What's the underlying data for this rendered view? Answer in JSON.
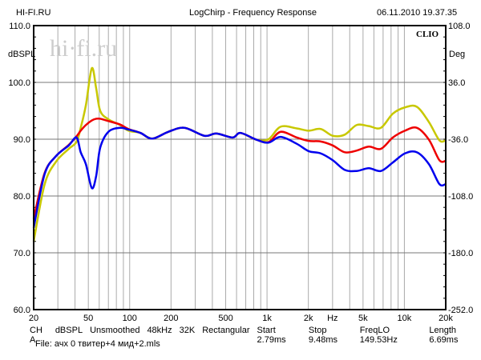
{
  "header": {
    "left": "HI-FI.RU",
    "title": "LogChirp - Frequency Response",
    "datetime": "06.11.2010 19.37.35"
  },
  "brand": "CLIO",
  "watermark": "hi·fi.ru",
  "footer": {
    "params": [
      "CH A",
      "dBSPL",
      "Unsmoothed",
      "48kHz",
      "32K",
      "Rectangular",
      "Start 2.79ms",
      "Stop 9.48ms",
      "FreqLO 149.53Hz",
      "Length 6.69ms"
    ],
    "file": "File: ачх 0 твитер+4 мид+2.mls"
  },
  "chart_data": {
    "type": "line",
    "title": "LogChirp - Frequency Response",
    "xlabel": "Hz",
    "ylabel": "dBSPL",
    "y2label": "Deg",
    "xscale": "log",
    "xlim": [
      20,
      20000
    ],
    "ylim": [
      60,
      110
    ],
    "y2lim": [
      -252,
      108
    ],
    "xticks": [
      {
        "v": 20,
        "l": "20"
      },
      {
        "v": 50,
        "l": "50"
      },
      {
        "v": 100,
        "l": "100"
      },
      {
        "v": 200,
        "l": "200"
      },
      {
        "v": 500,
        "l": "500"
      },
      {
        "v": 1000,
        "l": "1k"
      },
      {
        "v": 2000,
        "l": "2k"
      },
      {
        "v": 5000,
        "l": "5k"
      },
      {
        "v": 10000,
        "l": "10k"
      },
      {
        "v": 20000,
        "l": "20k"
      }
    ],
    "xunit_label_at": 3000,
    "yticks": [
      "110.0",
      "100.0",
      "90.0",
      "80.0",
      "70.0",
      "60.0"
    ],
    "y2ticks": [
      "108.0",
      "36.0",
      "-36.0",
      "-108.0",
      "-180.0",
      "-252.0"
    ],
    "grid": true,
    "x": [
      20,
      24,
      29,
      36,
      41,
      44,
      48,
      53,
      57,
      61,
      70,
      85,
      98,
      120,
      146,
      191,
      250,
      350,
      428,
      561,
      641,
      840,
      1026,
      1256,
      1644,
      2010,
      2460,
      3008,
      3680,
      4500,
      5510,
      6740,
      8240,
      10090,
      12340,
      15100,
      17980,
      20000
    ],
    "series": [
      {
        "name": "yellow",
        "color": "#c8c800",
        "values": [
          72,
          82,
          86,
          88.3,
          89.5,
          92,
          96,
          102.5,
          99,
          95,
          93.5,
          92.5,
          91.5,
          91.1,
          90.1,
          91.3,
          92.0,
          90.6,
          91.0,
          90.3,
          91.1,
          89.9,
          90.0,
          92.2,
          91.9,
          91.5,
          91.8,
          90.6,
          90.8,
          92.5,
          92.3,
          92.0,
          94.5,
          95.6,
          95.7,
          93.0,
          89.8,
          89.8
        ]
      },
      {
        "name": "red",
        "color": "#ee0000",
        "values": [
          76,
          84,
          87,
          89,
          90.5,
          91.5,
          92.5,
          93.3,
          93.6,
          93.6,
          93.2,
          92.6,
          91.8,
          91.1,
          90.1,
          91.3,
          92.0,
          90.6,
          91.0,
          90.3,
          91.1,
          89.9,
          89.5,
          91.3,
          90.3,
          89.7,
          89.6,
          88.9,
          87.7,
          88.0,
          88.7,
          88.3,
          90.3,
          91.5,
          92.0,
          89.9,
          86.3,
          86.2
        ]
      },
      {
        "name": "blue",
        "color": "#0000ee",
        "values": [
          74.4,
          83.8,
          87.0,
          88.9,
          90.3,
          87.7,
          85.6,
          81.4,
          83.5,
          88.5,
          91.3,
          92.0,
          91.7,
          91.1,
          90.1,
          91.3,
          92.0,
          90.6,
          91.0,
          90.3,
          91.1,
          89.9,
          89.4,
          90.4,
          89.2,
          87.9,
          87.5,
          86.3,
          84.6,
          84.4,
          84.9,
          84.4,
          85.9,
          87.5,
          87.7,
          85.6,
          82.1,
          82.1
        ]
      }
    ]
  }
}
